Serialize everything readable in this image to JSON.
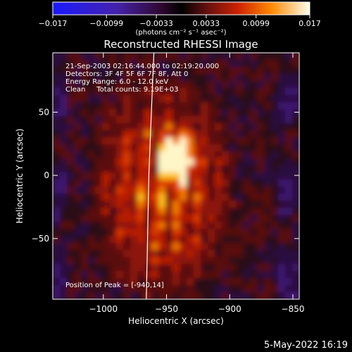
{
  "chart_data": {
    "type": "heatmap",
    "title": "Reconstructed RHESSI Image",
    "xlabel": "Heliocentric X (arcsec)",
    "ylabel": "Heliocentric Y (arcsec)",
    "xlim": [
      -1040,
      -845
    ],
    "ylim": [
      -98,
      97
    ],
    "xticks": [
      -1000,
      -950,
      -900,
      -850
    ],
    "xtick_labels": [
      "−1000",
      "−950",
      "−900",
      "−850"
    ],
    "yticks": [
      -50,
      0,
      50
    ],
    "ytick_labels": [
      "−50",
      "0",
      "50"
    ],
    "colorbar": {
      "range": [
        -0.017,
        0.017
      ],
      "ticks": [
        -0.017,
        -0.0099,
        -0.0033,
        0.0033,
        0.0099,
        0.017
      ],
      "tick_labels": [
        "−0.017",
        "−0.0099",
        "−0.0033",
        "0.0033",
        "0.0099",
        "0.017"
      ],
      "label": "(photons cm⁻² s⁻¹ asec⁻²)"
    },
    "annotations": [
      "21-Sep-2003 02:16:44.000 to 02:19:20.000",
      "Detectors: 3F 4F 5F 6F 7F 8F, Att 0",
      "Energy Range: 6.0 - 12.0 keV",
      "Clean     Total counts: 9.19E+03"
    ],
    "peak_label": "Position of Peak = [-940,14]",
    "peak": {
      "x": -940,
      "y": 14,
      "value": 0.017
    },
    "limb_points": [
      [
        -960,
        97
      ],
      [
        -962,
        50
      ],
      [
        -964,
        0
      ],
      [
        -965,
        -50
      ],
      [
        -966,
        -98
      ]
    ]
  },
  "footer": {
    "date": "5-May-2022 16:19"
  }
}
